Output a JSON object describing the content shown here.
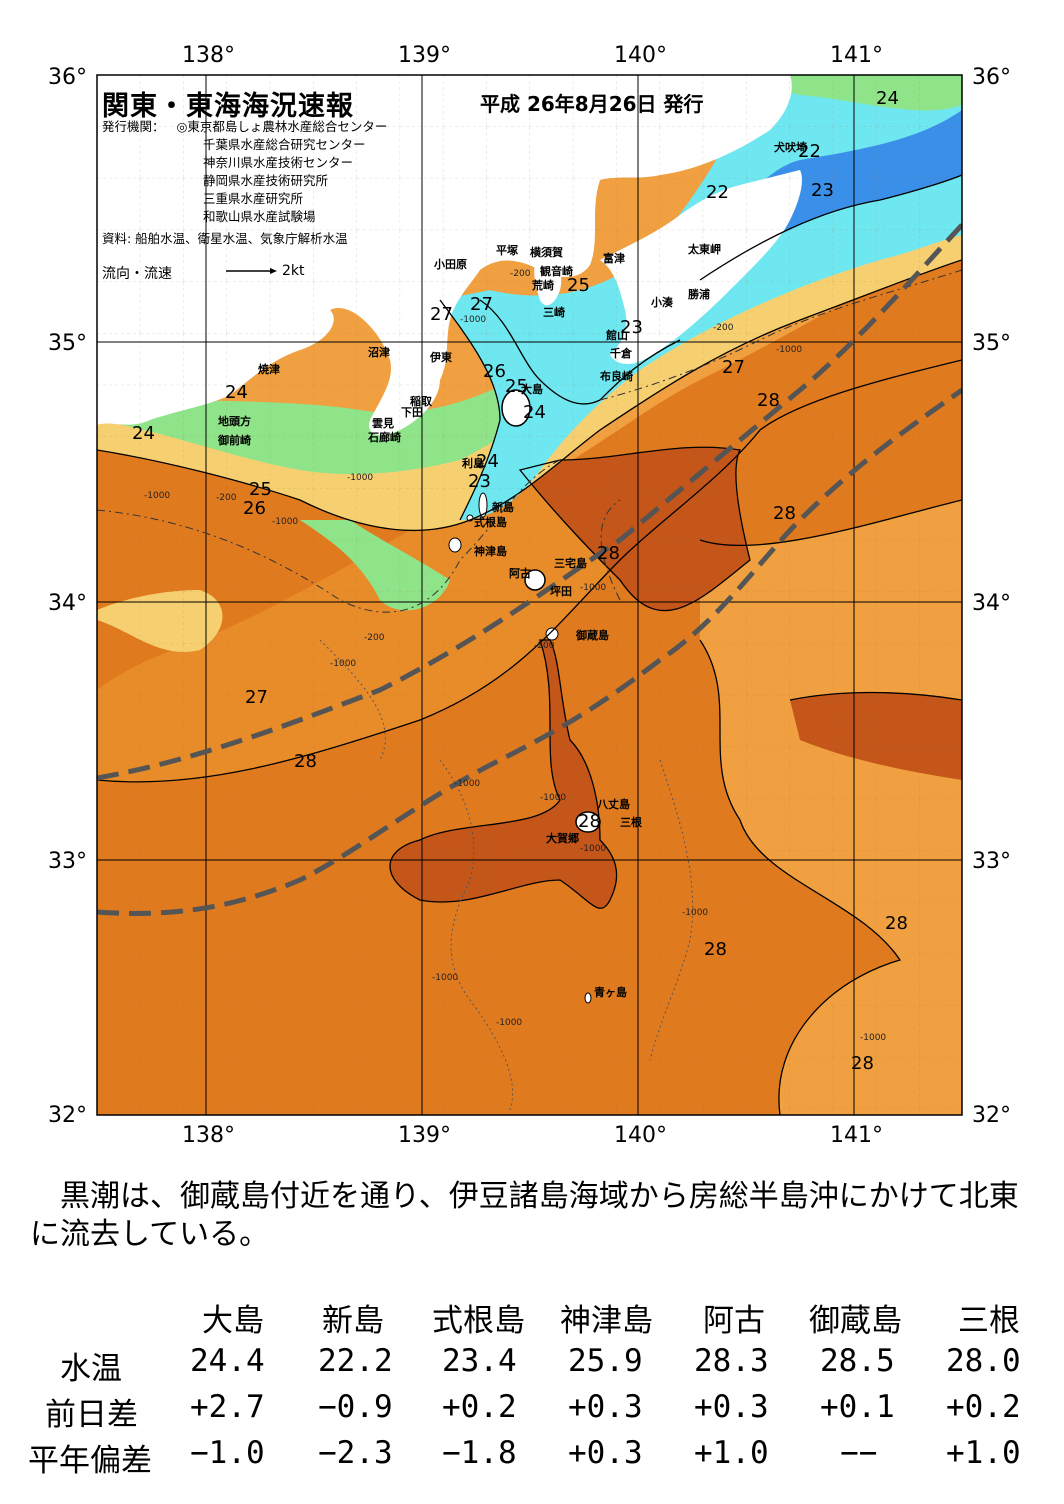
{
  "map": {
    "title": "関東・東海海況速報",
    "issue_date": "平成 26年8月26日 発行",
    "issuer_heading": "発行機関：",
    "issuers": [
      "◎東京都島しょ農林水産総合センター",
      "千葉県水産総合研究センター",
      "神奈川県水産技術センター",
      "静岡県水産技術研究所",
      "三重県水産研究所",
      "和歌山県水産試験場"
    ],
    "sources": "資料: 船舶水温、衛星水温、気象庁解析水温",
    "flow_legend": "流向・流速",
    "flow_unit": "2kt",
    "lon_ticks": [
      "138°",
      "139°",
      "140°",
      "141°"
    ],
    "lat_ticks": [
      "36°",
      "35°",
      "34°",
      "33°",
      "32°"
    ],
    "place_labels": [
      "小田原",
      "平塚",
      "横須賀",
      "観音崎",
      "富津",
      "荒崎",
      "三崎",
      "館山",
      "千倉",
      "布良崎",
      "小湊",
      "勝浦",
      "太東岬",
      "犬吠埼",
      "沼津",
      "伊東",
      "焼津",
      "地頭方",
      "御前崎",
      "雲見",
      "石廊崎",
      "下田",
      "稲取",
      "大島",
      "利島",
      "新島",
      "式根島",
      "神津島",
      "三宅島",
      "阿古",
      "坪田",
      "御蔵島",
      "八丈島",
      "三根",
      "大賀郷",
      "青ヶ島"
    ],
    "isotherm_labels": [
      "24",
      "22",
      "22",
      "23",
      "27",
      "27",
      "25",
      "23",
      "26",
      "25",
      "24",
      "24",
      "27",
      "28",
      "24",
      "24",
      "23",
      "25",
      "26",
      "28",
      "28",
      "27",
      "28",
      "28",
      "28",
      "28",
      "28"
    ],
    "isobath_labels": [
      "-200",
      "-200",
      "-1000",
      "-1000",
      "-200",
      "-1000",
      "-1000",
      "-1000",
      "-1000",
      "-200",
      "-1000",
      "-200",
      "-1000",
      "-1000",
      "-1000",
      "-1000",
      "-1000",
      "-1000",
      "-1000"
    ],
    "colors": {
      "water_warm": "#e07a1f",
      "water_warmest": "#c5561a",
      "water_orange": "#f0a040",
      "water_yellow": "#f6d070",
      "water_green": "#8fe48a",
      "water_cyan": "#6fe7f0",
      "water_blue": "#3a8fe8",
      "land": "#ffffff",
      "kuroshio_axis": "#555555"
    }
  },
  "summary": "　黒潮は、御蔵島付近を通り、伊豆諸島海域から房総半島沖にかけて北東に流去している。",
  "stats": {
    "columns": [
      "大島",
      "新島",
      "式根島",
      "神津島",
      "阿古",
      "御蔵島",
      "三根"
    ],
    "rows": [
      {
        "label": "水温",
        "values": [
          "24.4",
          "22.2",
          "23.4",
          "25.9",
          "28.3",
          "28.5",
          "28.0"
        ]
      },
      {
        "label": "前日差",
        "values": [
          "+2.7",
          "−0.9",
          "+0.2",
          "+0.3",
          "+0.3",
          "+0.1",
          "+0.2"
        ]
      },
      {
        "label": "平年偏差",
        "values": [
          "−1.0",
          "−2.3",
          "−1.8",
          "+0.3",
          "+1.0",
          "−−",
          "+1.0"
        ]
      }
    ]
  }
}
